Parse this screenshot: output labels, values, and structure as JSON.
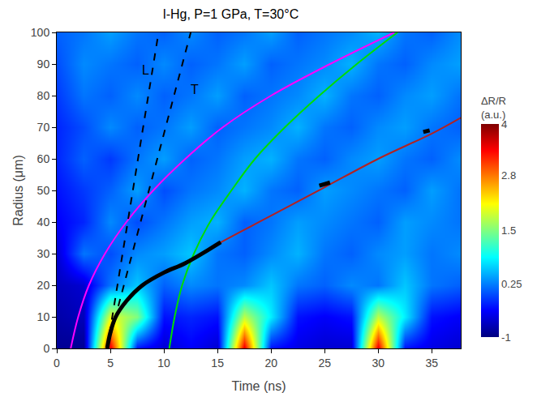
{
  "chart_data": {
    "type": "heatmap",
    "title": "l-Hg, P=1 GPa, T=30°C",
    "x_label": "Time (ns)",
    "y_label": "Radius (μm)",
    "xlim": [
      0,
      37.7
    ],
    "ylim": [
      0,
      100
    ],
    "xticks": [
      0,
      5,
      10,
      15,
      20,
      25,
      30,
      35
    ],
    "yticks": [
      0,
      10,
      20,
      30,
      40,
      50,
      60,
      70,
      80,
      90,
      100
    ],
    "heatmap": {
      "x": [
        0,
        2.5,
        5,
        7.5,
        10,
        12.5,
        15,
        17.5,
        20,
        22.5,
        25,
        27.5,
        30,
        32.5,
        35,
        37.5
      ],
      "y": [
        0,
        10,
        20,
        30,
        40,
        50,
        60,
        70,
        80,
        90,
        100
      ],
      "z": [
        [
          -0.9,
          -0.9,
          3.5,
          -0.3,
          -0.6,
          -0.4,
          -0.6,
          3.5,
          -0.3,
          -0.5,
          -0.6,
          -0.6,
          3.5,
          -0.3,
          -0.5,
          -0.6
        ],
        [
          -0.8,
          -0.7,
          2.0,
          1.5,
          -0.3,
          -0.2,
          -0.3,
          1.8,
          0.8,
          -0.3,
          -0.4,
          -0.3,
          1.8,
          0.8,
          -0.3,
          -0.4
        ],
        [
          -0.7,
          -0.6,
          0.2,
          0.6,
          0.1,
          0.3,
          0.2,
          0.3,
          0.6,
          0.2,
          0.1,
          0.3,
          0.2,
          0.6,
          0.2,
          0.1
        ],
        [
          -0.6,
          0.2,
          0.0,
          0.3,
          0.4,
          0.6,
          0.2,
          0.1,
          0.3,
          0.5,
          0.2,
          0.1,
          0.3,
          0.4,
          0.2,
          0.3
        ],
        [
          -0.4,
          -0.2,
          0.3,
          0.0,
          0.2,
          0.4,
          0.5,
          0.1,
          0.2,
          0.4,
          0.3,
          0.2,
          0.1,
          0.4,
          0.3,
          0.2
        ],
        [
          -0.3,
          -0.1,
          0.1,
          0.4,
          0.0,
          0.2,
          0.3,
          0.5,
          0.2,
          0.1,
          0.4,
          0.3,
          0.2,
          0.1,
          0.4,
          0.2
        ],
        [
          -0.2,
          0.1,
          -0.1,
          0.2,
          0.4,
          0.1,
          0.2,
          0.4,
          0.5,
          0.2,
          0.1,
          0.3,
          0.4,
          0.2,
          0.1,
          0.3
        ],
        [
          -0.2,
          0.0,
          0.3,
          0.1,
          0.2,
          0.4,
          0.1,
          0.2,
          0.3,
          0.5,
          0.2,
          0.1,
          0.3,
          0.4,
          0.2,
          0.1
        ],
        [
          -0.1,
          0.2,
          0.1,
          0.3,
          0.1,
          0.2,
          0.4,
          0.1,
          0.2,
          0.3,
          0.5,
          0.2,
          0.1,
          0.3,
          0.4,
          0.2
        ],
        [
          0.0,
          0.3,
          0.2,
          0.1,
          0.3,
          0.1,
          0.2,
          0.4,
          0.1,
          0.2,
          0.3,
          0.5,
          0.2,
          0.1,
          0.3,
          0.4
        ],
        [
          0.1,
          0.2,
          0.4,
          0.2,
          0.1,
          0.3,
          0.1,
          0.2,
          0.4,
          0.1,
          0.2,
          0.3,
          0.5,
          0.2,
          0.1,
          0.3
        ]
      ]
    },
    "colorbar": {
      "title": "ΔR/R (a.u.)",
      "range": [
        -1,
        4
      ],
      "ticks": [
        -1,
        0.25,
        1.5,
        2.8,
        4
      ]
    },
    "series": [
      {
        "color": "#ff00ff",
        "line_style": "solid",
        "x": [
          1.3,
          2,
          3,
          4.5,
          6.5,
          9,
          12,
          15.5,
          20,
          25.5,
          31.5
        ],
        "values": [
          0,
          10,
          20,
          30,
          40,
          50,
          60,
          70,
          80,
          90,
          100
        ]
      },
      {
        "color": "#00dd00",
        "line_style": "solid",
        "x": [
          10.5,
          11,
          11.7,
          12.8,
          14.3,
          16.3,
          18.5,
          21.3,
          24.5,
          28,
          31.8
        ],
        "values": [
          0,
          10,
          20,
          30,
          40,
          50,
          60,
          70,
          80,
          90,
          100
        ]
      },
      {
        "color": "#b22222",
        "line_style": "solid",
        "x": [
          4.7,
          5,
          5.5,
          6.5,
          8,
          10,
          12,
          15,
          20,
          25,
          30,
          35,
          37.7
        ],
        "values": [
          0,
          5,
          10,
          15,
          20,
          24,
          27,
          33,
          42,
          51,
          60,
          68,
          73
        ]
      },
      {
        "color": "#000000",
        "line_style": "thick",
        "x": [
          4.7,
          5,
          5.5,
          6.5,
          8,
          10,
          12,
          15.3,
          null,
          24.5,
          25.5,
          null,
          34.2,
          34.8
        ],
        "values": [
          0,
          5,
          10,
          15,
          20,
          24,
          27,
          33.6,
          null,
          51.5,
          52.5,
          null,
          68.5,
          69
        ]
      },
      {
        "color": "#000000",
        "line_style": "dashed",
        "x": [
          4.7,
          9.5
        ],
        "values": [
          0,
          100
        ]
      },
      {
        "color": "#000000",
        "line_style": "dashed",
        "x": [
          4.7,
          12.5
        ],
        "values": [
          0,
          100
        ]
      }
    ],
    "annotations": [
      {
        "text": "L",
        "x": 8.3,
        "y": 88
      },
      {
        "text": "T",
        "x": 12.9,
        "y": 82
      }
    ]
  }
}
